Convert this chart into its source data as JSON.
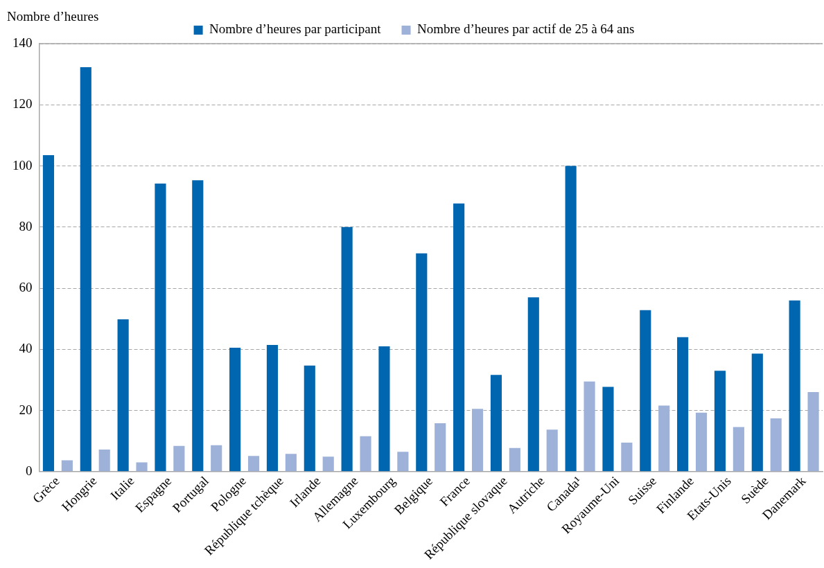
{
  "chart_data": {
    "type": "bar",
    "ylabel": "Nombre d’heures",
    "categories": [
      "Grèce",
      "Hongrie",
      "Italie",
      "Espagne",
      "Portugal",
      "Pologne",
      "République tchèque",
      "Irlande",
      "Allemagne",
      "Luxembourg",
      "Belgique",
      "France",
      "République slovaque",
      "Autriche",
      "Canada¹",
      "Royaume-Uni",
      "Suisse",
      "Finlande",
      "Etats-Unis",
      "Suède",
      "Danemark"
    ],
    "series": [
      {
        "name": "Nombre d’heures par participant",
        "color": "#0066b0",
        "values": [
          103.5,
          132.3,
          49.8,
          94.2,
          95.3,
          40.5,
          41.4,
          34.7,
          80.0,
          41.0,
          71.4,
          87.7,
          31.6,
          57.0,
          100.0,
          27.7,
          52.8,
          44.0,
          33.0,
          38.6,
          56.0
        ]
      },
      {
        "name": "Nombre d’heures par actif de 25 à 64 ans",
        "color": "#9db1d9",
        "values": [
          3.7,
          7.2,
          3.0,
          8.4,
          8.6,
          5.1,
          5.8,
          4.9,
          11.6,
          6.5,
          15.8,
          20.5,
          7.7,
          13.7,
          29.5,
          9.5,
          21.6,
          19.3,
          14.6,
          17.4,
          26.0
        ]
      }
    ],
    "ylim": [
      0,
      140
    ],
    "yticks": [
      0,
      20,
      40,
      60,
      80,
      100,
      120,
      140
    ],
    "grid": "y",
    "legend": "top"
  }
}
